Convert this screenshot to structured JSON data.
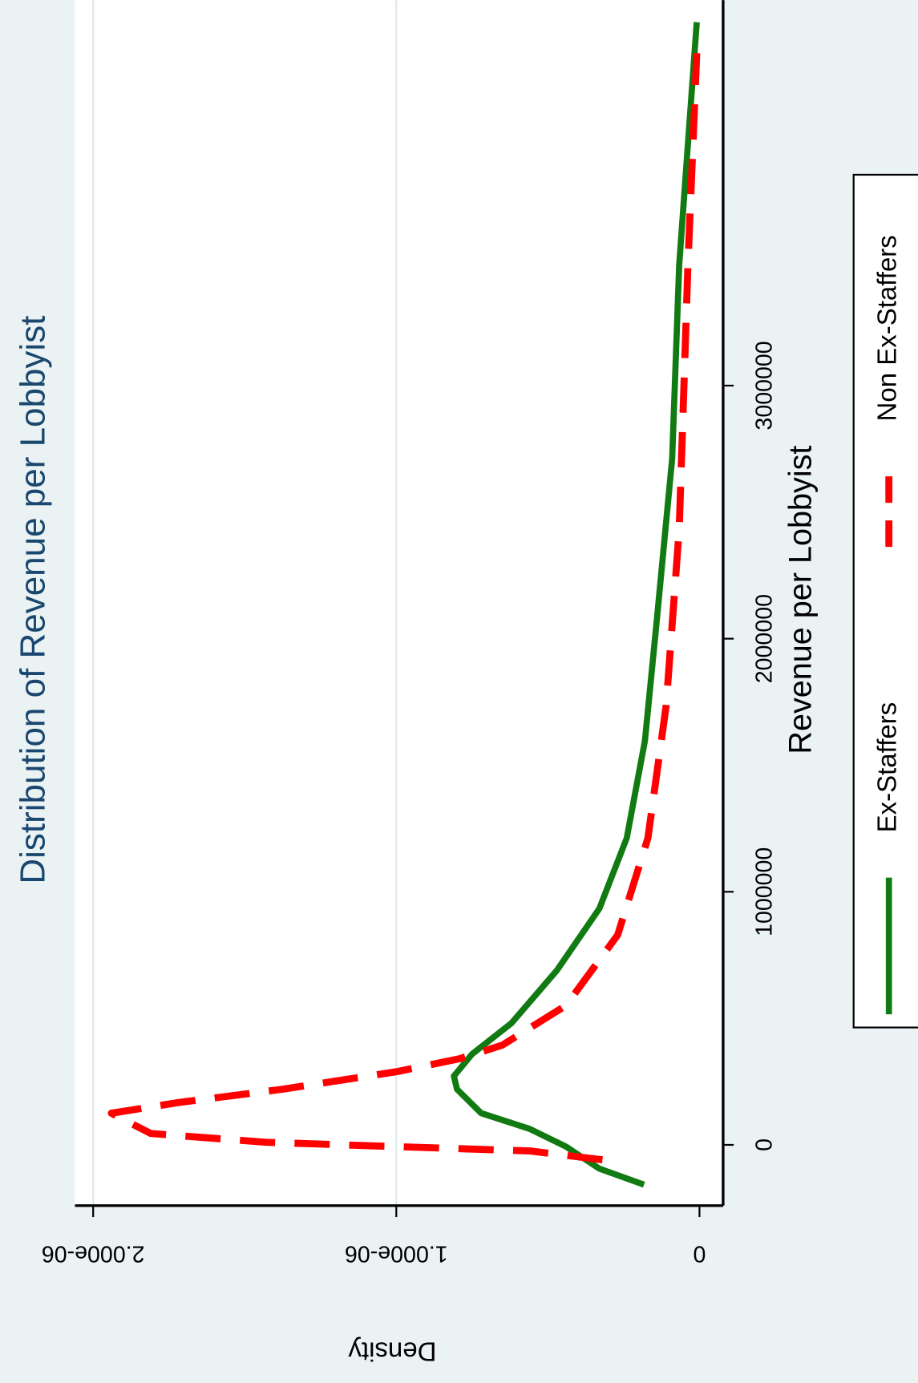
{
  "chart_data": {
    "type": "line",
    "title": "Distribution of Revenue per Lobbyist",
    "x_label": "Revenue per Lobbyist",
    "y_label": "Density",
    "xlim": [
      -240000,
      4523000
    ],
    "xticks": [
      0,
      1000000,
      2000000,
      3000000
    ],
    "ylim": [
      -7.8e-08,
      2.06e-06
    ],
    "yticks": [
      0,
      {
        "value": 1e-06,
        "label": "1.000e-06"
      },
      {
        "value": 2e-06,
        "label": "2.000e-06"
      }
    ],
    "grid": true,
    "series": [
      {
        "name": "Ex-Staffers",
        "color": "#127a12",
        "style": "solid",
        "x": [
          -157000,
          -94000,
          -7000,
          63000,
          125000,
          220000,
          272000,
          359000,
          481000,
          690000,
          934000,
          1212000,
          1596000,
          2084000,
          2711000,
          3477000,
          4436000
        ],
        "values": [
          1.83e-07,
          3.3e-07,
          4.4e-07,
          5.6e-07,
          7.2e-07,
          8e-07,
          8.1e-07,
          7.5e-07,
          6.2e-07,
          4.7e-07,
          3.3e-07,
          2.4e-07,
          1.8e-07,
          1.4e-07,
          9e-08,
          6.7e-08,
          9e-09
        ]
      },
      {
        "name": "Non Ex-Staffers",
        "color": "#ff0000",
        "style": "dashed",
        "x": [
          -59000,
          -24000,
          -7000,
          10000,
          45000,
          125000,
          167000,
          220000,
          289000,
          341000,
          394000,
          551000,
          829000,
          1212000,
          1735000,
          2432000,
          3477000,
          4314000
        ],
        "values": [
          3.2e-07,
          5.6e-07,
          1e-06,
          1.43e-06,
          1.81e-06,
          1.94e-06,
          1.72e-06,
          1.375e-06,
          1e-06,
          7.9e-07,
          6.5e-07,
          4.4e-07,
          2.7e-07,
          1.7e-07,
          1.1e-07,
          6.7e-08,
          3.8e-08,
          9e-09
        ]
      }
    ]
  }
}
